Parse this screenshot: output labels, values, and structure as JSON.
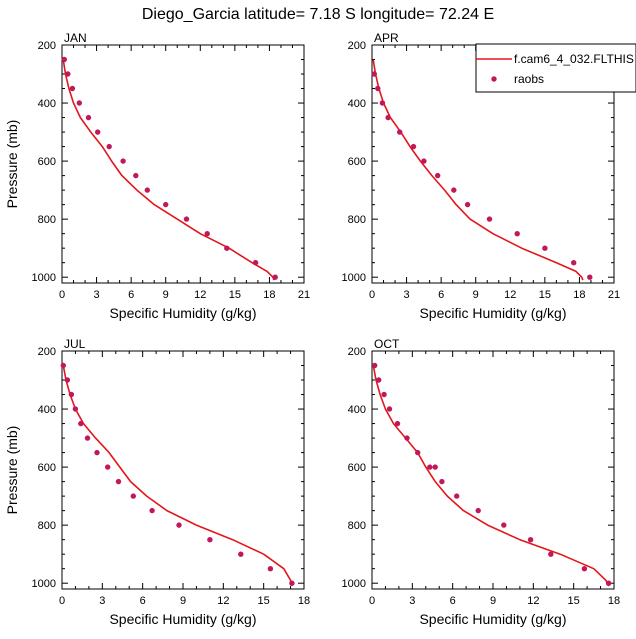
{
  "figure": {
    "title": "Diego_Garcia  latitude= 7.18 S longitude= 72.24 E",
    "line_color": "#e3161b",
    "marker_color": "#c2185b"
  },
  "legend": {
    "model_label": "f.cam6_4_032.FLTHIS",
    "obs_label": "raobs"
  },
  "chart_data": [
    {
      "type": "line",
      "panel": "JAN",
      "xlabel": "Specific Humidity (g/kg)",
      "ylabel": "Pressure (mb)",
      "xlim": [
        0,
        21
      ],
      "ylim": [
        1000,
        200
      ],
      "xticks": [
        0,
        3,
        6,
        9,
        12,
        15,
        18,
        21
      ],
      "yticks": [
        200,
        400,
        600,
        800,
        1000
      ],
      "series": [
        {
          "name": "f.cam6_4_032.FLTHIS",
          "x": [
            0.1,
            0.3,
            0.6,
            1.0,
            1.6,
            2.5,
            3.5,
            4.3,
            5.2,
            6.5,
            8.0,
            10.0,
            12.0,
            14.5,
            16.5,
            17.8,
            18.3,
            18.4
          ],
          "y": [
            250,
            300,
            350,
            400,
            450,
            500,
            550,
            600,
            650,
            700,
            750,
            800,
            850,
            900,
            950,
            980,
            1000,
            1010
          ]
        },
        {
          "name": "raobs",
          "x": [
            0.2,
            0.5,
            0.9,
            1.5,
            2.3,
            3.1,
            4.1,
            5.3,
            6.4,
            7.4,
            9.0,
            10.8,
            12.6,
            14.3,
            16.8,
            18.5
          ],
          "y": [
            250,
            300,
            350,
            400,
            450,
            500,
            550,
            600,
            650,
            700,
            750,
            800,
            850,
            900,
            950,
            1000
          ]
        }
      ]
    },
    {
      "type": "line",
      "panel": "APR",
      "xlabel": "Specific Humidity (g/kg)",
      "ylabel": "",
      "xlim": [
        0,
        21
      ],
      "ylim": [
        1000,
        200
      ],
      "xticks": [
        0,
        3,
        6,
        9,
        12,
        15,
        18,
        21
      ],
      "yticks": [
        200,
        400,
        600,
        800,
        1000
      ],
      "series": [
        {
          "name": "f.cam6_4_032.FLTHIS",
          "x": [
            0.1,
            0.3,
            0.6,
            1.0,
            1.6,
            2.5,
            3.3,
            4.2,
            5.2,
            6.3,
            7.3,
            8.5,
            10.5,
            13.0,
            16.0,
            17.7,
            18.2,
            18.3
          ],
          "y": [
            250,
            300,
            350,
            400,
            450,
            500,
            550,
            600,
            650,
            700,
            750,
            800,
            850,
            900,
            950,
            980,
            1000,
            1010
          ]
        },
        {
          "name": "raobs",
          "x": [
            0.2,
            0.5,
            0.9,
            1.4,
            2.4,
            3.6,
            4.5,
            5.7,
            7.1,
            8.3,
            10.2,
            12.6,
            15.0,
            17.5,
            18.9
          ],
          "y": [
            300,
            350,
            400,
            450,
            500,
            550,
            600,
            650,
            700,
            750,
            800,
            850,
            900,
            950,
            1000
          ]
        }
      ]
    },
    {
      "type": "line",
      "panel": "JUL",
      "xlabel": "Specific Humidity (g/kg)",
      "ylabel": "Pressure (mb)",
      "xlim": [
        0,
        18
      ],
      "ylim": [
        1000,
        200
      ],
      "xticks": [
        0,
        3,
        6,
        9,
        12,
        15,
        18
      ],
      "yticks": [
        200,
        400,
        600,
        800,
        1000
      ],
      "series": [
        {
          "name": "f.cam6_4_032.FLTHIS",
          "x": [
            0.1,
            0.3,
            0.6,
            1.0,
            1.6,
            2.5,
            3.5,
            4.3,
            5.1,
            6.3,
            7.8,
            10.0,
            12.7,
            15.0,
            16.5,
            17.0,
            17.1
          ],
          "y": [
            250,
            300,
            350,
            400,
            450,
            500,
            550,
            600,
            650,
            700,
            750,
            800,
            850,
            900,
            950,
            990,
            1010
          ]
        },
        {
          "name": "raobs",
          "x": [
            0.1,
            0.4,
            0.7,
            1.0,
            1.4,
            1.9,
            2.6,
            3.4,
            4.2,
            5.3,
            6.7,
            8.7,
            11.0,
            13.3,
            15.5,
            17.1
          ],
          "y": [
            250,
            300,
            350,
            400,
            450,
            500,
            550,
            600,
            650,
            700,
            750,
            800,
            850,
            900,
            950,
            1000
          ]
        }
      ]
    },
    {
      "type": "line",
      "panel": "OCT",
      "xlabel": "Specific Humidity (g/kg)",
      "ylabel": "",
      "xlim": [
        0,
        18
      ],
      "ylim": [
        1000,
        200
      ],
      "xticks": [
        0,
        3,
        6,
        9,
        12,
        15,
        18
      ],
      "yticks": [
        200,
        400,
        600,
        800,
        1000
      ],
      "series": [
        {
          "name": "f.cam6_4_032.FLTHIS",
          "x": [
            0.1,
            0.3,
            0.6,
            1.0,
            1.6,
            2.5,
            3.4,
            4.0,
            4.7,
            5.6,
            6.8,
            8.6,
            11.0,
            14.0,
            16.5,
            17.4,
            17.6
          ],
          "y": [
            250,
            300,
            350,
            400,
            450,
            500,
            550,
            600,
            650,
            700,
            750,
            800,
            850,
            900,
            950,
            990,
            1010
          ]
        },
        {
          "name": "raobs",
          "x": [
            0.2,
            0.5,
            0.9,
            1.3,
            1.9,
            2.6,
            3.4,
            4.3,
            4.7,
            5.2,
            6.3,
            7.9,
            9.8,
            11.8,
            13.3,
            15.8,
            17.6
          ],
          "y": [
            250,
            300,
            350,
            400,
            450,
            500,
            550,
            600,
            600,
            650,
            700,
            750,
            800,
            850,
            900,
            950,
            1000
          ]
        }
      ]
    }
  ]
}
